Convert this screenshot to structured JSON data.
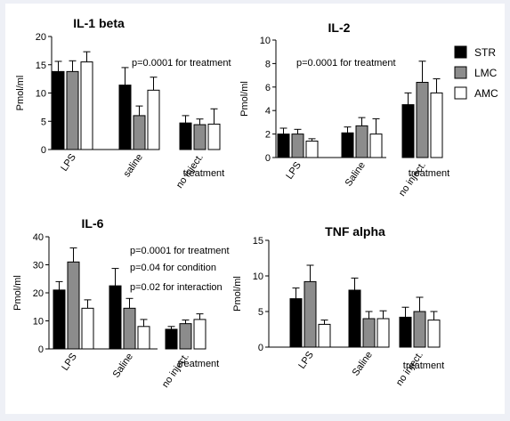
{
  "legend": [
    {
      "label": "STR",
      "color": "#000000"
    },
    {
      "label": "LMC",
      "color": "#8c8c8c"
    },
    {
      "label": "AMC",
      "color": "#ffffff"
    }
  ],
  "chart_data": [
    {
      "type": "bar",
      "title": "IL-1 beta",
      "ylabel": "Pmol/ml",
      "xlabel": "treatment",
      "ylim": [
        0,
        20
      ],
      "yticks": [
        "0",
        "5",
        "10",
        "15",
        "20"
      ],
      "categories": [
        "LPS",
        "saline",
        "no inject."
      ],
      "series": [
        {
          "name": "STR",
          "values": [
            13.8,
            11.4,
            4.7
          ],
          "errors": [
            1.8,
            3.1,
            1.3
          ]
        },
        {
          "name": "LMC",
          "values": [
            13.8,
            6.0,
            4.4
          ],
          "errors": [
            1.9,
            1.7,
            1.0
          ]
        },
        {
          "name": "AMC",
          "values": [
            15.5,
            10.5,
            4.5
          ],
          "errors": [
            1.8,
            2.3,
            2.7
          ]
        }
      ],
      "annotations": [
        "p=0.0001 for treatment"
      ]
    },
    {
      "type": "bar",
      "title": "IL-2",
      "ylabel": "Pmol/ml",
      "xlabel": "treatment",
      "ylim": [
        0,
        10
      ],
      "yticks": [
        "0",
        "2",
        "4",
        "6",
        "8",
        "10"
      ],
      "categories": [
        "LPS",
        "Saline",
        "no inject."
      ],
      "series": [
        {
          "name": "STR",
          "values": [
            2.0,
            2.1,
            4.5
          ],
          "errors": [
            0.5,
            0.5,
            1.0
          ]
        },
        {
          "name": "LMC",
          "values": [
            2.0,
            2.7,
            6.4
          ],
          "errors": [
            0.4,
            0.7,
            1.8
          ]
        },
        {
          "name": "AMC",
          "values": [
            1.4,
            2.0,
            5.5
          ],
          "errors": [
            0.2,
            1.3,
            1.2
          ]
        }
      ],
      "annotations": [
        "p=0.0001 for treatment"
      ]
    },
    {
      "type": "bar",
      "title": "IL-6",
      "ylabel": "Pmol/ml",
      "xlabel": "treatment",
      "ylim": [
        0,
        40
      ],
      "yticks": [
        "0",
        "10",
        "20",
        "30",
        "40"
      ],
      "categories": [
        "LPS",
        "Saline",
        "no inject."
      ],
      "series": [
        {
          "name": "STR",
          "values": [
            21,
            22.5,
            7
          ],
          "errors": [
            3,
            6.2,
            1
          ]
        },
        {
          "name": "LMC",
          "values": [
            31,
            14.5,
            9
          ],
          "errors": [
            5,
            3.5,
            1.3
          ]
        },
        {
          "name": "AMC",
          "values": [
            14.5,
            8,
            10.5
          ],
          "errors": [
            3,
            2.5,
            2
          ]
        }
      ],
      "annotations": [
        "p=0.0001 for treatment",
        "p=0.04 for condition",
        "p=0.02 for interaction"
      ]
    },
    {
      "type": "bar",
      "title": "TNF alpha",
      "ylabel": "Pmol/ml",
      "xlabel": "treatment",
      "ylim": [
        0,
        15
      ],
      "yticks": [
        "0",
        "5",
        "10",
        "15"
      ],
      "categories": [
        "LPS",
        "Saline",
        "no inject."
      ],
      "series": [
        {
          "name": "STR",
          "values": [
            6.8,
            8.0,
            4.2
          ],
          "errors": [
            1.5,
            1.7,
            1.4
          ]
        },
        {
          "name": "LMC",
          "values": [
            9.2,
            4.0,
            5.0
          ],
          "errors": [
            2.3,
            1.0,
            2.0
          ]
        },
        {
          "name": "AMC",
          "values": [
            3.2,
            4.0,
            3.8
          ],
          "errors": [
            0.6,
            1.1,
            1.2
          ]
        }
      ],
      "annotations": []
    }
  ]
}
